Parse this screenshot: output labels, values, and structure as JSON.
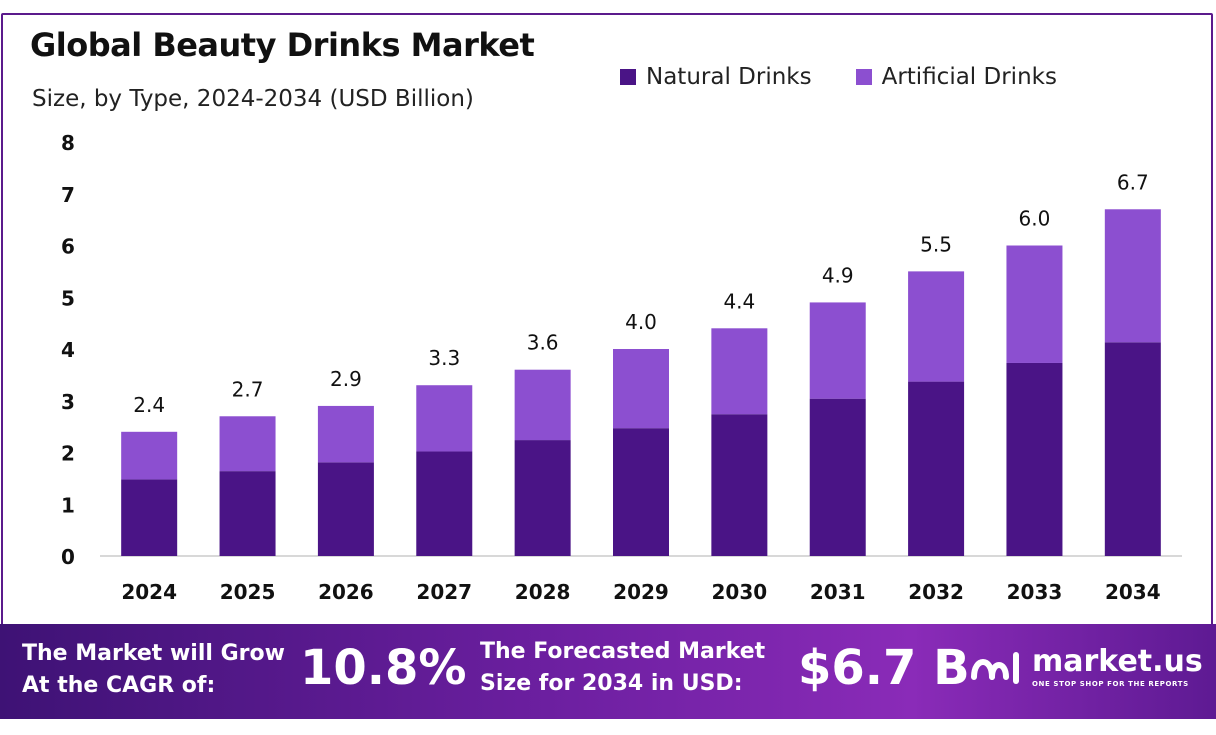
{
  "colors": {
    "natural": "#4a1486",
    "artificial": "#8c4fd0",
    "border": "#5b1a8c"
  },
  "chart_data": {
    "type": "bar",
    "stacked": true,
    "title": "Global Beauty Drinks Market",
    "subtitle": "Size, by Type, 2024-2034 (USD Billion)",
    "categories": [
      "2024",
      "2025",
      "2026",
      "2027",
      "2028",
      "2029",
      "2030",
      "2031",
      "2032",
      "2033",
      "2034"
    ],
    "series": [
      {
        "name": "Natural Drinks",
        "values": [
          1.48,
          1.64,
          1.81,
          2.02,
          2.24,
          2.47,
          2.74,
          3.04,
          3.37,
          3.73,
          4.13
        ]
      },
      {
        "name": "Artificial Drinks",
        "values": [
          0.92,
          1.06,
          1.09,
          1.28,
          1.36,
          1.53,
          1.66,
          1.86,
          2.13,
          2.27,
          2.57
        ]
      }
    ],
    "totals": [
      "2.4",
      "2.7",
      "2.9",
      "3.3",
      "3.6",
      "4.0",
      "4.4",
      "4.9",
      "5.5",
      "6.0",
      "6.7"
    ],
    "ylim": [
      0,
      8
    ],
    "yticks": [
      "0",
      "1",
      "2",
      "3",
      "4",
      "5",
      "6",
      "7",
      "8"
    ],
    "legend_position": "top-right",
    "grid": false
  },
  "footer": {
    "cagr_label_1": "The Market will Grow",
    "cagr_label_2": "At the CAGR of:",
    "cagr_value": "10.8%",
    "forecast_label_1": "The Forecasted Market",
    "forecast_label_2": "Size for 2034 in USD:",
    "forecast_value": "$6.7 B",
    "brand_name": "market.us",
    "brand_tagline": "ONE STOP SHOP FOR THE REPORTS"
  }
}
